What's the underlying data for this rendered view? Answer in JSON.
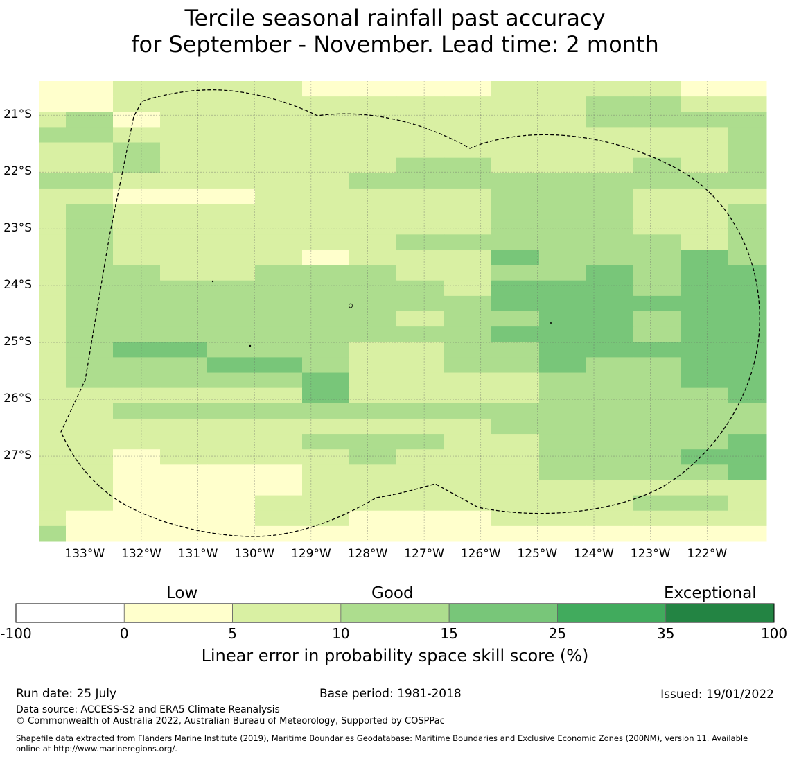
{
  "title_line1": "Tercile seasonal rainfall past accuracy",
  "title_line2": "for September - November. Lead time: 2 month",
  "map": {
    "lon_range": [
      -133.8,
      -120.95
    ],
    "lat_range": [
      -28.5,
      -20.4
    ],
    "lat_ticks": [
      "21°S",
      "22°S",
      "23°S",
      "24°S",
      "25°S",
      "26°S",
      "27°S"
    ],
    "lat_values": [
      -21,
      -22,
      -23,
      -24,
      -25,
      -26,
      -27
    ],
    "lon_ticks": [
      "133°W",
      "132°W",
      "131°W",
      "130°W",
      "129°W",
      "128°W",
      "127°W",
      "126°W",
      "125°W",
      "124°W",
      "123°W",
      "122°W"
    ],
    "lon_values": [
      -133,
      -132,
      -131,
      -130,
      -129,
      -128,
      -127,
      -126,
      -125,
      -124,
      -123,
      -122
    ],
    "grid_lines": true,
    "boundary": "Exclusive Economic Zone (dashed)",
    "category_colors": [
      "#ffffff",
      "#ffffcc",
      "#d9f0a3",
      "#addd8e",
      "#78c679",
      "#41ab5d",
      "#238443"
    ],
    "category_grid_rows_north_to_south": [
      "11122221111112222211",
      "11222222222222233222",
      "23212222222222233333",
      "33222222222222222223",
      "22332222222222222223",
      "22332222223332223223",
      "33222222233323333333",
      "22111122222233332222",
      "23322222222233332223",
      "23322222222223332223",
      "23322222223333333223",
      "23322221122234333243",
      "23332233332223343344",
      "23333333333234443444",
      "23333333333344444444",
      "23333334332333443444",
      "23333333333334443444",
      "23344333322333444444",
      "23333443322333433444",
      "23333333422222333344",
      "22222222422222333334",
      "22233333333333333333",
      "22222222222223333333",
      "22222222333222333334",
      "22212222232222333344",
      "22211111222222333334",
      "22211112222222222222",
      "22211122222222223332",
      "21111122211122222222",
      "31111111111111111111"
    ]
  },
  "colorbar": {
    "ticks": [
      "-100",
      "0",
      "5",
      "10",
      "15",
      "25",
      "35",
      "100"
    ],
    "colors": [
      "#ffffff",
      "#ffffcc",
      "#d9f0a3",
      "#addd8e",
      "#78c679",
      "#41ab5d",
      "#238443"
    ],
    "category_labels": [
      "Low",
      "Good",
      "Exceptional"
    ],
    "title": "Linear error in probability space skill score (%)"
  },
  "footer": {
    "run_date": "Run date: 25 July",
    "base_period": "Base period: 1981-2018",
    "issued": "Issued: 19/01/2022",
    "data_source": "Data source: ACCESS-S2 and ERA5 Climate Reanalysis",
    "copyright": "© Commonwealth of Australia 2022, Australian Bureau of Meteorology, Supported by COSPPac",
    "shapefile_line1": "Shapefile data extracted from Flanders Marine Institute (2019), Maritime Boundaries Geodatabase: Maritime Boundaries and Exclusive Economic Zones (200NM), version 11. Available",
    "shapefile_line2": "online at http://www.marineregions.org/."
  }
}
